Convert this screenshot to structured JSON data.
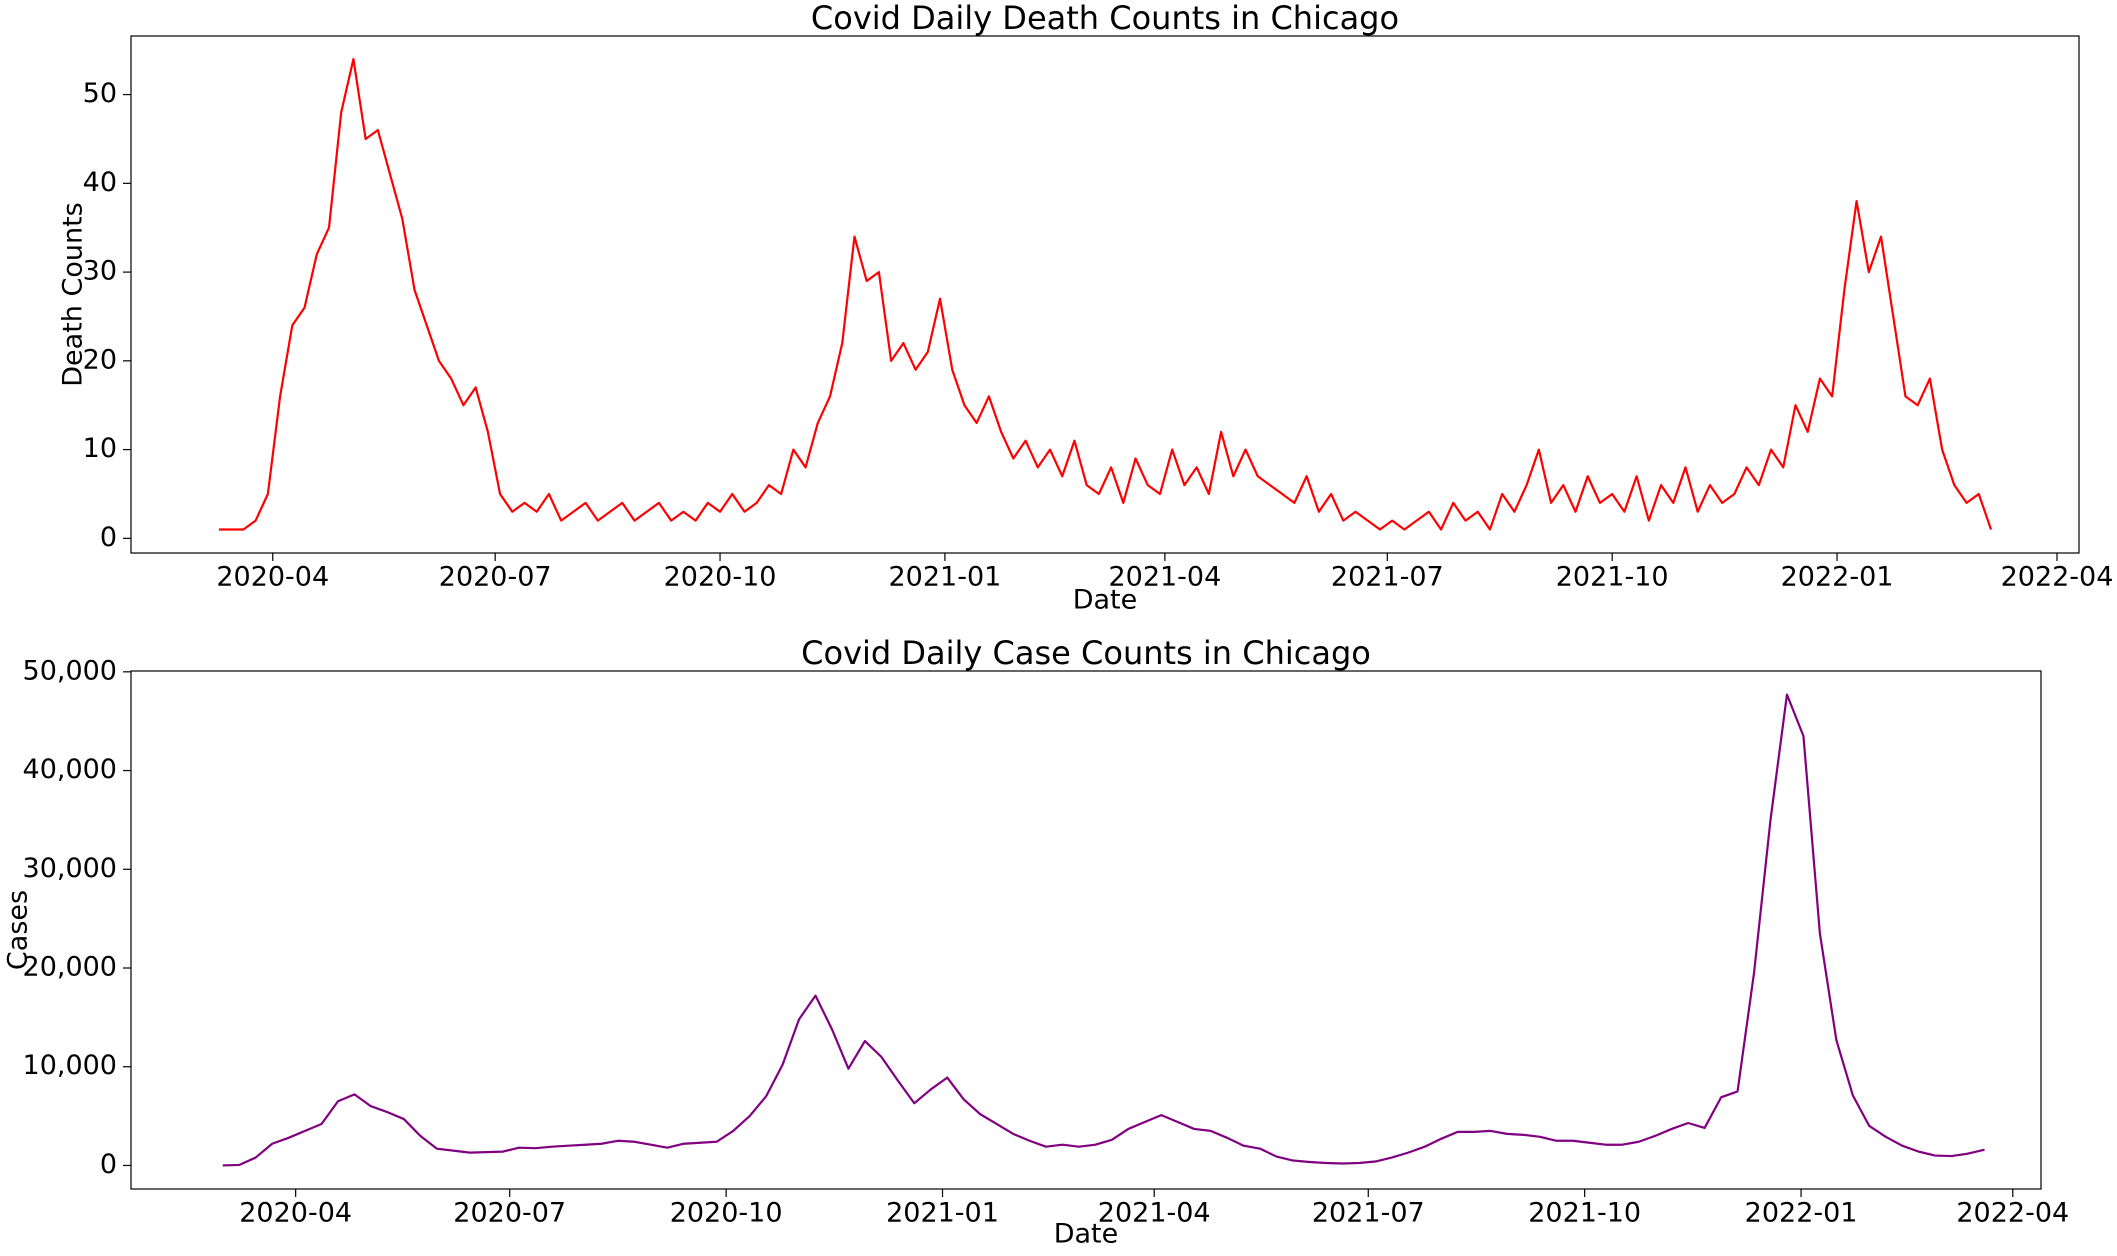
{
  "chart_data": [
    {
      "type": "line",
      "title": "Covid Daily Death Counts in Chicago",
      "xlabel": "Date",
      "ylabel": "Death Counts",
      "x": [
        "2020-03-10",
        "2020-03-15",
        "2020-03-20",
        "2020-03-25",
        "2020-03-30",
        "2020-04-04",
        "2020-04-09",
        "2020-04-14",
        "2020-04-19",
        "2020-04-24",
        "2020-04-29",
        "2020-05-04",
        "2020-05-09",
        "2020-05-14",
        "2020-05-19",
        "2020-05-24",
        "2020-05-29",
        "2020-06-03",
        "2020-06-08",
        "2020-06-13",
        "2020-06-18",
        "2020-06-23",
        "2020-06-28",
        "2020-07-03",
        "2020-07-08",
        "2020-07-13",
        "2020-07-18",
        "2020-07-23",
        "2020-07-28",
        "2020-08-02",
        "2020-08-07",
        "2020-08-12",
        "2020-08-17",
        "2020-08-22",
        "2020-08-27",
        "2020-09-01",
        "2020-09-06",
        "2020-09-11",
        "2020-09-16",
        "2020-09-21",
        "2020-09-26",
        "2020-10-01",
        "2020-10-06",
        "2020-10-11",
        "2020-10-16",
        "2020-10-21",
        "2020-10-26",
        "2020-10-31",
        "2020-11-05",
        "2020-11-10",
        "2020-11-15",
        "2020-11-20",
        "2020-11-25",
        "2020-11-30",
        "2020-12-05",
        "2020-12-10",
        "2020-12-15",
        "2020-12-20",
        "2020-12-25",
        "2020-12-30",
        "2021-01-04",
        "2021-01-09",
        "2021-01-14",
        "2021-01-19",
        "2021-01-24",
        "2021-01-29",
        "2021-02-03",
        "2021-02-08",
        "2021-02-13",
        "2021-02-18",
        "2021-02-23",
        "2021-02-28",
        "2021-03-05",
        "2021-03-10",
        "2021-03-15",
        "2021-03-20",
        "2021-03-25",
        "2021-03-30",
        "2021-04-04",
        "2021-04-09",
        "2021-04-14",
        "2021-04-19",
        "2021-04-24",
        "2021-04-29",
        "2021-05-04",
        "2021-05-09",
        "2021-05-14",
        "2021-05-19",
        "2021-05-24",
        "2021-05-29",
        "2021-06-03",
        "2021-06-08",
        "2021-06-13",
        "2021-06-18",
        "2021-06-23",
        "2021-06-28",
        "2021-07-03",
        "2021-07-08",
        "2021-07-13",
        "2021-07-18",
        "2021-07-23",
        "2021-07-28",
        "2021-08-02",
        "2021-08-07",
        "2021-08-12",
        "2021-08-17",
        "2021-08-22",
        "2021-08-27",
        "2021-09-01",
        "2021-09-06",
        "2021-09-11",
        "2021-09-16",
        "2021-09-21",
        "2021-09-26",
        "2021-10-01",
        "2021-10-06",
        "2021-10-11",
        "2021-10-16",
        "2021-10-21",
        "2021-10-26",
        "2021-10-31",
        "2021-11-05",
        "2021-11-10",
        "2021-11-15",
        "2021-11-20",
        "2021-11-25",
        "2021-11-30",
        "2021-12-05",
        "2021-12-10",
        "2021-12-15",
        "2021-12-20",
        "2021-12-25",
        "2021-12-30",
        "2022-01-04",
        "2022-01-09",
        "2022-01-14",
        "2022-01-19",
        "2022-01-24",
        "2022-01-29",
        "2022-02-03",
        "2022-02-08",
        "2022-02-13",
        "2022-02-18",
        "2022-02-23",
        "2022-02-28",
        "2022-03-05"
      ],
      "series": [
        {
          "name": "Death Counts",
          "color": "#ff0000",
          "values": [
            1,
            1,
            1,
            2,
            5,
            16,
            24,
            26,
            32,
            35,
            48,
            54,
            45,
            46,
            41,
            36,
            28,
            24,
            20,
            18,
            15,
            17,
            12,
            5,
            3,
            4,
            3,
            5,
            2,
            3,
            4,
            2,
            3,
            4,
            2,
            3,
            4,
            2,
            3,
            2,
            4,
            3,
            5,
            3,
            4,
            6,
            5,
            10,
            8,
            13,
            16,
            22,
            34,
            29,
            30,
            20,
            22,
            19,
            21,
            27,
            19,
            15,
            13,
            16,
            12,
            9,
            11,
            8,
            10,
            7,
            11,
            6,
            5,
            8,
            4,
            9,
            6,
            5,
            10,
            6,
            8,
            5,
            12,
            7,
            10,
            7,
            6,
            5,
            4,
            7,
            3,
            5,
            2,
            3,
            2,
            1,
            2,
            1,
            2,
            3,
            1,
            4,
            2,
            3,
            1,
            5,
            3,
            6,
            10,
            4,
            6,
            3,
            7,
            4,
            5,
            3,
            7,
            2,
            6,
            4,
            8,
            3,
            6,
            4,
            5,
            8,
            6,
            10,
            8,
            15,
            12,
            18,
            16,
            28,
            38,
            30,
            34,
            25,
            16,
            15,
            18,
            10,
            6,
            4,
            5,
            1
          ]
        }
      ],
      "xlim": [
        "2020-02-03",
        "2022-04-10"
      ],
      "xticks": [
        {
          "value": "2020-04-01",
          "label": "2020-04"
        },
        {
          "value": "2020-07-01",
          "label": "2020-07"
        },
        {
          "value": "2020-10-01",
          "label": "2020-10"
        },
        {
          "value": "2021-01-01",
          "label": "2021-01"
        },
        {
          "value": "2021-04-01",
          "label": "2021-04"
        },
        {
          "value": "2021-07-01",
          "label": "2021-07"
        },
        {
          "value": "2021-10-01",
          "label": "2021-10"
        },
        {
          "value": "2022-01-01",
          "label": "2022-01"
        },
        {
          "value": "2022-04-01",
          "label": "2022-04"
        }
      ],
      "ylim": [
        -1.65,
        56.6
      ],
      "yticks": [
        0,
        10,
        20,
        30,
        40,
        50
      ],
      "grid": false
    },
    {
      "type": "line",
      "title": "Covid Daily Case Counts in Chicago",
      "xlabel": "Date",
      "ylabel": "Cases",
      "x": [
        "2020-03-01",
        "2020-03-08",
        "2020-03-15",
        "2020-03-22",
        "2020-03-29",
        "2020-04-05",
        "2020-04-12",
        "2020-04-19",
        "2020-04-26",
        "2020-05-03",
        "2020-05-10",
        "2020-05-17",
        "2020-05-24",
        "2020-05-31",
        "2020-06-07",
        "2020-06-14",
        "2020-06-21",
        "2020-06-28",
        "2020-07-05",
        "2020-07-12",
        "2020-07-19",
        "2020-07-26",
        "2020-08-02",
        "2020-08-09",
        "2020-08-16",
        "2020-08-23",
        "2020-08-30",
        "2020-09-06",
        "2020-09-13",
        "2020-09-20",
        "2020-09-27",
        "2020-10-04",
        "2020-10-11",
        "2020-10-18",
        "2020-10-25",
        "2020-11-01",
        "2020-11-08",
        "2020-11-15",
        "2020-11-22",
        "2020-11-29",
        "2020-12-06",
        "2020-12-13",
        "2020-12-20",
        "2020-12-27",
        "2021-01-03",
        "2021-01-10",
        "2021-01-17",
        "2021-01-24",
        "2021-01-31",
        "2021-02-07",
        "2021-02-14",
        "2021-02-21",
        "2021-02-28",
        "2021-03-07",
        "2021-03-14",
        "2021-03-21",
        "2021-03-28",
        "2021-04-04",
        "2021-04-11",
        "2021-04-18",
        "2021-04-25",
        "2021-05-02",
        "2021-05-09",
        "2021-05-16",
        "2021-05-23",
        "2021-05-30",
        "2021-06-06",
        "2021-06-13",
        "2021-06-20",
        "2021-06-27",
        "2021-07-04",
        "2021-07-11",
        "2021-07-18",
        "2021-07-25",
        "2021-08-01",
        "2021-08-08",
        "2021-08-15",
        "2021-08-22",
        "2021-08-29",
        "2021-09-05",
        "2021-09-12",
        "2021-09-19",
        "2021-09-26",
        "2021-10-03",
        "2021-10-10",
        "2021-10-17",
        "2021-10-24",
        "2021-10-31",
        "2021-11-07",
        "2021-11-14",
        "2021-11-21",
        "2021-11-28",
        "2021-12-05",
        "2021-12-12",
        "2021-12-19",
        "2021-12-26",
        "2022-01-02",
        "2022-01-09",
        "2022-01-16",
        "2022-01-23",
        "2022-01-30",
        "2022-02-06",
        "2022-02-13",
        "2022-02-20",
        "2022-02-27",
        "2022-03-06",
        "2022-03-13",
        "2022-03-20"
      ],
      "series": [
        {
          "name": "Cases",
          "color": "#800080",
          "values": [
            0,
            50,
            800,
            2200,
            2800,
            3500,
            4200,
            6500,
            7200,
            6000,
            5400,
            4700,
            3000,
            1700,
            1500,
            1300,
            1350,
            1400,
            1800,
            1750,
            1900,
            2000,
            2100,
            2200,
            2500,
            2400,
            2100,
            1800,
            2200,
            2300,
            2400,
            3500,
            5000,
            7000,
            10200,
            14800,
            17200,
            13800,
            9800,
            12600,
            11000,
            8600,
            6300,
            7700,
            8900,
            6700,
            5200,
            4200,
            3200,
            2500,
            1900,
            2100,
            1900,
            2100,
            2600,
            3700,
            4400,
            5100,
            4400,
            3700,
            3500,
            2800,
            2000,
            1700,
            900,
            500,
            350,
            250,
            200,
            250,
            400,
            800,
            1300,
            1900,
            2700,
            3400,
            3400,
            3500,
            3200,
            3100,
            2900,
            2500,
            2500,
            2300,
            2100,
            2100,
            2400,
            3000,
            3700,
            4300,
            3800,
            6900,
            7500,
            19500,
            35000,
            47700,
            43500,
            23500,
            12700,
            7100,
            4000,
            2900,
            2000,
            1400,
            1000,
            950,
            1200,
            1600
          ]
        }
      ],
      "xlim": [
        "2020-01-22",
        "2022-04-13"
      ],
      "xticks": [
        {
          "value": "2020-04-01",
          "label": "2020-04"
        },
        {
          "value": "2020-07-01",
          "label": "2020-07"
        },
        {
          "value": "2020-10-01",
          "label": "2020-10"
        },
        {
          "value": "2021-01-01",
          "label": "2021-01"
        },
        {
          "value": "2021-04-01",
          "label": "2021-04"
        },
        {
          "value": "2021-07-01",
          "label": "2021-07"
        },
        {
          "value": "2021-10-01",
          "label": "2021-10"
        },
        {
          "value": "2022-01-01",
          "label": "2022-01"
        },
        {
          "value": "2022-04-01",
          "label": "2022-04"
        }
      ],
      "ylim": [
        -2385,
        50085
      ],
      "yticks": [
        0,
        {
          "value": 10000,
          "label": "10,000"
        },
        {
          "value": 20000,
          "label": "20,000"
        },
        {
          "value": 30000,
          "label": "30,000"
        },
        {
          "value": 40000,
          "label": "40,000"
        },
        {
          "value": 50000,
          "label": "50,000"
        }
      ],
      "grid": false
    }
  ]
}
